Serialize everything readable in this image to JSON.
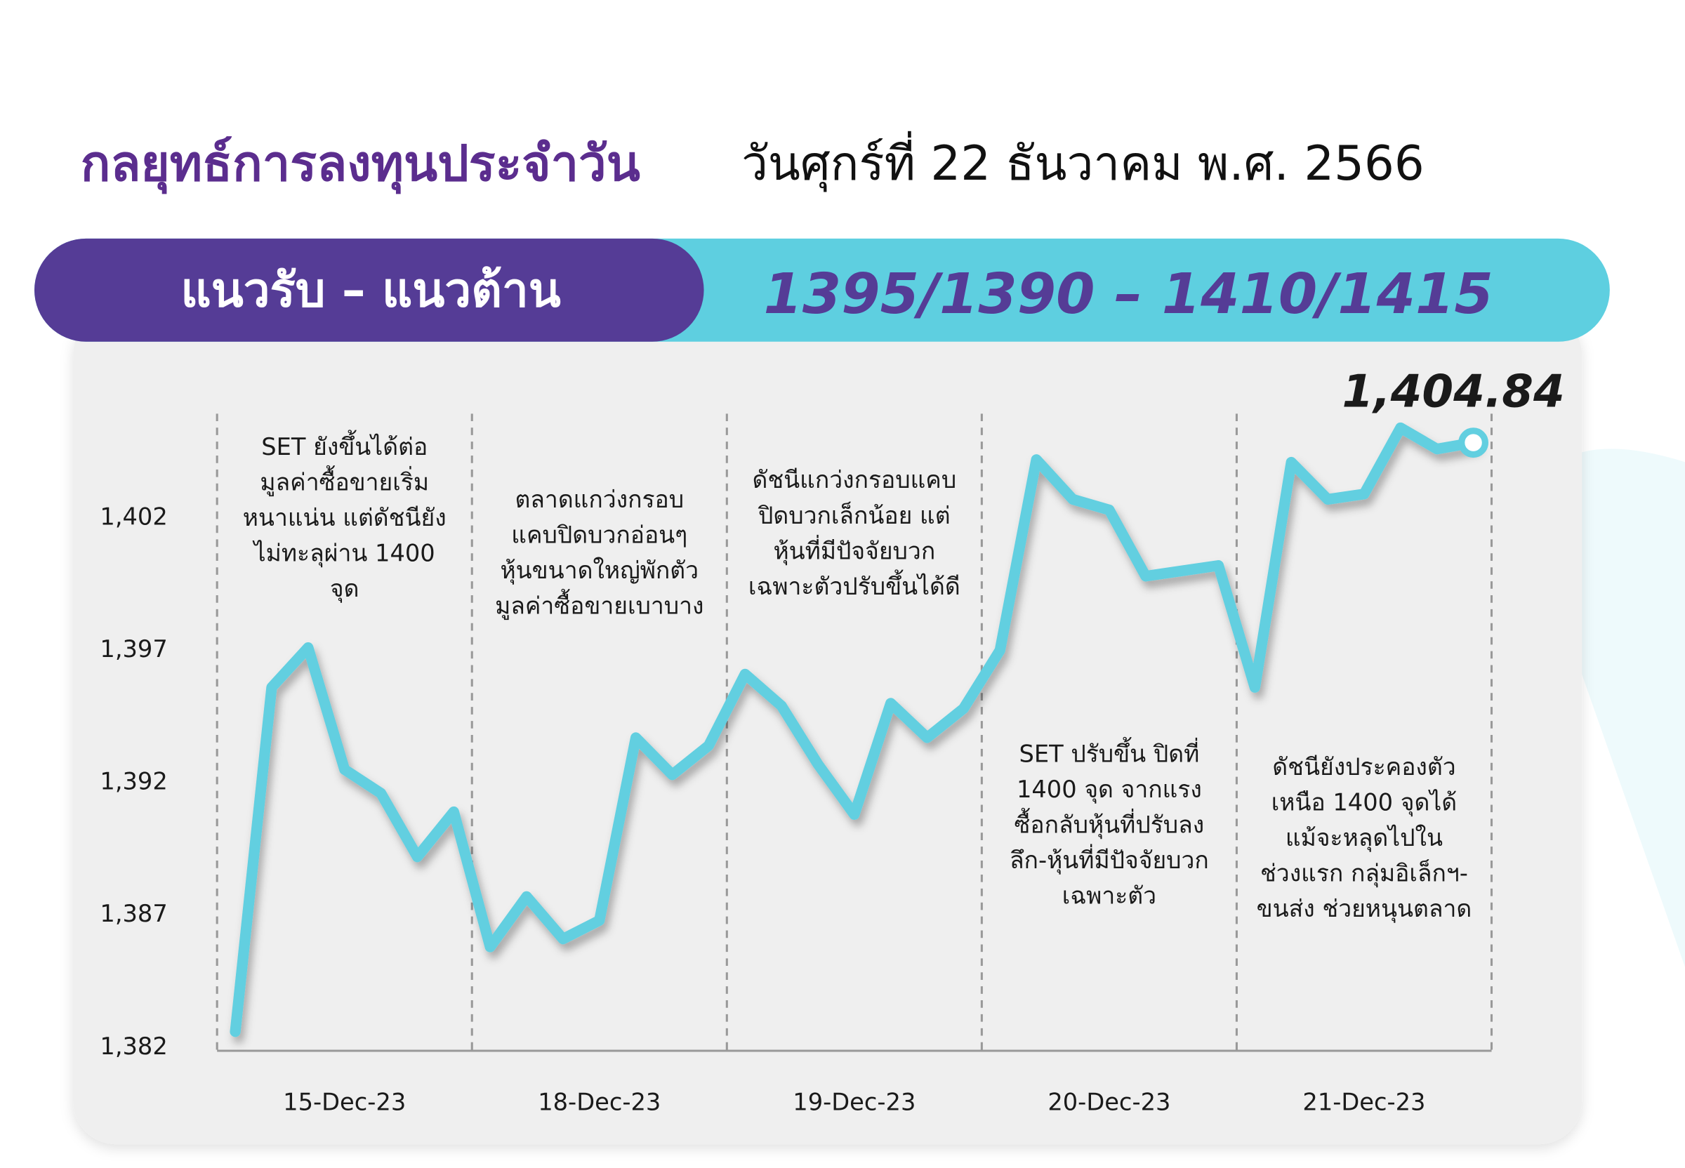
{
  "chart_data": {
    "type": "line",
    "title": "กลยุทธ์การลงทุนประจำวัน",
    "subtitle": "วันศุกร์ที่ 22 ธันวาคม พ.ศ. 2566",
    "banner_label": "แนวรับ – แนวต้าน",
    "banner_levels": "1395/1390 –  1410/1415",
    "categories": [
      null,
      null,
      null,
      "15-Dec-23",
      null,
      null,
      null,
      null,
      null,
      null,
      "18-Dec-23",
      null,
      null,
      null,
      null,
      null,
      null,
      "19-Dec-23",
      null,
      null,
      null,
      null,
      null,
      null,
      "20-Dec-23",
      null,
      null,
      null,
      null,
      null,
      null,
      "21-Dec-23",
      null,
      null,
      null
    ],
    "values": [
      1382.6,
      1395.6,
      1397.1,
      1392.5,
      1391.6,
      1389.2,
      1390.9,
      1385.8,
      1387.7,
      1386.1,
      1386.8,
      1393.7,
      1392.3,
      1393.4,
      1396.1,
      1394.9,
      1392.7,
      1390.8,
      1395.0,
      1393.7,
      1394.8,
      1397.0,
      1404.2,
      1402.7,
      1402.3,
      1399.8,
      1400.0,
      1400.2,
      1395.6,
      1404.1,
      1402.7,
      1402.9,
      1405.4,
      1404.6,
      1404.84
    ],
    "value_labels": [
      null,
      null,
      null,
      null,
      null,
      null,
      null,
      null,
      null,
      null,
      null,
      null,
      null,
      null,
      null,
      null,
      null,
      null,
      null,
      null,
      null,
      null,
      null,
      null,
      null,
      null,
      null,
      null,
      null,
      null,
      null,
      null,
      null,
      null,
      "1,404.84"
    ],
    "color": "#62cfe0",
    "ylim": [
      1382,
      1406
    ],
    "yticks": [
      {
        "value": 1382,
        "label": "1,382"
      },
      {
        "value": 1387,
        "label": "1,387"
      },
      {
        "value": 1392,
        "label": "1,392"
      },
      {
        "value": 1397,
        "label": "1,397"
      },
      {
        "value": 1402,
        "label": "1,402"
      }
    ],
    "grid": false,
    "annotations": [
      [
        "SET ยังขึ้นได้ต่อ",
        "มูลค่าซื้อขายเริ่ม",
        "หนาแน่น แต่ดัชนียัง",
        "ไม่ทะลุผ่าน 1400",
        "จุด"
      ],
      [
        "ตลาดแกว่งกรอบ",
        "แคบปิดบวกอ่อนๆ",
        "หุ้นขนาดใหญ่พักตัว",
        "มูลค่าซื้อขายเบาบาง"
      ],
      [
        "ดัชนีแกว่งกรอบแคบ",
        "ปิดบวกเล็กน้อย แต่",
        "หุ้นที่มีปัจจัยบวก",
        "เฉพาะตัวปรับขึ้นได้ดี"
      ],
      [
        "SET ปรับขึ้น ปิดที่",
        "1400 จุด จากแรง",
        "ซื้อกลับหุ้นที่ปรับลง",
        "ลึก-หุ้นที่มีปัจจัยบวก",
        "เฉพาะตัว"
      ],
      [
        "ดัชนียังประคองตัว",
        "เหนือ 1400 จุดได้",
        "แม้จะหลุดไปใน",
        "ช่วงแรก กลุ่มอิเล็กฯ-",
        "ขนส่ง ช่วยหนุนตลาด"
      ]
    ]
  }
}
